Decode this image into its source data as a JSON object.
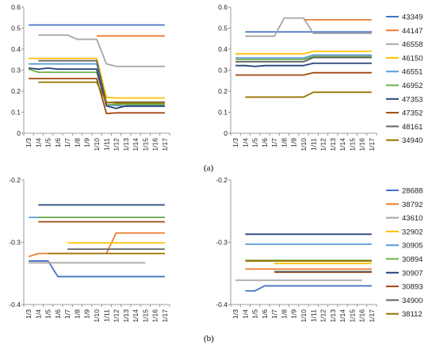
{
  "panel_labels": [
    "(a)",
    "(b)"
  ],
  "chart_data": [
    {
      "type": "line",
      "panel": "a",
      "side": "left",
      "categories": [
        "1/3",
        "1/4",
        "1/5",
        "1/6",
        "1/7",
        "1/8",
        "1/9",
        "1/10",
        "1/11",
        "1/12",
        "1/13",
        "1/14",
        "1/15",
        "1/16",
        "1/17"
      ],
      "ylim": [
        0,
        0.6
      ],
      "yticks": [
        0,
        0.1,
        0.2,
        0.3,
        0.4,
        0.5,
        0.6
      ],
      "grid": false,
      "series": [
        {
          "name": "43349",
          "color": "#4472C4",
          "values": [
            0.515,
            0.515,
            0.515,
            0.515,
            0.515,
            0.515,
            0.515,
            0.515,
            0.515,
            0.515,
            0.515,
            0.515,
            0.515,
            0.515,
            0.515
          ]
        },
        {
          "name": "44147",
          "color": "#ED7D31",
          "values": [
            null,
            null,
            null,
            null,
            null,
            null,
            null,
            0.463,
            0.463,
            0.463,
            0.463,
            0.463,
            0.463,
            0.463,
            0.463
          ]
        },
        {
          "name": "46558",
          "color": "#A5A5A5",
          "values": [
            null,
            0.467,
            0.467,
            0.467,
            0.467,
            0.447,
            0.447,
            0.447,
            0.33,
            0.318,
            0.318,
            0.318,
            0.318,
            0.318,
            0.318
          ]
        },
        {
          "name": "46150",
          "color": "#FFC000",
          "values": [
            0.356,
            0.356,
            0.356,
            0.356,
            0.356,
            0.356,
            0.356,
            0.356,
            0.17,
            0.168,
            0.168,
            0.168,
            0.168,
            0.168,
            0.168
          ]
        },
        {
          "name": "46551",
          "color": "#5B9BD5",
          "values": [
            0.33,
            0.33,
            0.33,
            0.33,
            0.33,
            0.33,
            0.33,
            0.33,
            0.135,
            0.132,
            0.128,
            0.128,
            0.128,
            0.128,
            0.128
          ]
        },
        {
          "name": "46952",
          "color": "#70AD47",
          "values": [
            0.305,
            0.29,
            0.29,
            0.29,
            0.29,
            0.29,
            0.29,
            0.29,
            0.135,
            0.138,
            0.138,
            0.138,
            0.138,
            0.138,
            0.138
          ]
        },
        {
          "name": "47353",
          "color": "#264478",
          "values": [
            0.31,
            0.305,
            0.31,
            0.305,
            0.305,
            0.305,
            0.305,
            0.305,
            0.13,
            0.118,
            0.13,
            0.13,
            0.13,
            0.13,
            0.13
          ]
        },
        {
          "name": "47352",
          "color": "#9E480E",
          "values": [
            0.26,
            0.26,
            0.26,
            0.26,
            0.26,
            0.26,
            0.26,
            0.26,
            0.094,
            0.097,
            0.097,
            0.097,
            0.097,
            0.097,
            0.097
          ]
        },
        {
          "name": "48161",
          "color": "#636363",
          "values": [
            null,
            0.345,
            0.345,
            0.345,
            0.345,
            0.345,
            0.345,
            0.345,
            0.145,
            0.148,
            0.148,
            0.148,
            0.148,
            0.148,
            0.148
          ]
        },
        {
          "name": "34940",
          "color": "#997300",
          "values": [
            null,
            0.243,
            0.243,
            0.243,
            0.243,
            0.243,
            0.243,
            0.243,
            0.147,
            0.145,
            0.145,
            0.145,
            0.145,
            0.145,
            0.145
          ]
        }
      ]
    },
    {
      "type": "line",
      "panel": "a",
      "side": "right",
      "categories": [
        "1/3",
        "1/4",
        "1/5",
        "1/6",
        "1/7",
        "1/8",
        "1/9",
        "1/10",
        "1/11",
        "1/12",
        "1/13",
        "1/14",
        "1/15",
        "1/16",
        "1/17"
      ],
      "ylim": [
        0,
        0.6
      ],
      "yticks": [
        0,
        0.1,
        0.2,
        0.3,
        0.4,
        0.5,
        0.6
      ],
      "grid": false,
      "series": [
        {
          "name": "43349",
          "color": "#4472C4",
          "values": [
            null,
            0.482,
            0.482,
            0.482,
            0.482,
            0.482,
            0.482,
            0.482,
            0.482,
            0.482,
            0.482,
            0.482,
            0.482,
            0.482,
            0.482
          ]
        },
        {
          "name": "44147",
          "color": "#ED7D31",
          "values": [
            null,
            null,
            null,
            null,
            null,
            null,
            null,
            0.54,
            0.54,
            0.54,
            0.54,
            0.54,
            0.54,
            0.54,
            0.54
          ]
        },
        {
          "name": "46558",
          "color": "#A5A5A5",
          "values": [
            null,
            0.462,
            0.462,
            0.462,
            0.462,
            0.548,
            0.548,
            0.548,
            0.475,
            0.475,
            0.475,
            0.475,
            0.475,
            0.475,
            0.475
          ]
        },
        {
          "name": "46150",
          "color": "#FFC000",
          "values": [
            0.378,
            0.378,
            0.378,
            0.378,
            0.378,
            0.378,
            0.378,
            0.378,
            0.39,
            0.39,
            0.39,
            0.39,
            0.39,
            0.39,
            0.39
          ]
        },
        {
          "name": "46551",
          "color": "#5B9BD5",
          "values": [
            0.358,
            0.358,
            0.358,
            0.358,
            0.358,
            0.358,
            0.358,
            0.358,
            0.372,
            0.372,
            0.372,
            0.372,
            0.372,
            0.372,
            0.372
          ]
        },
        {
          "name": "46952",
          "color": "#70AD47",
          "values": [
            0.35,
            0.35,
            0.35,
            0.35,
            0.35,
            0.35,
            0.35,
            0.35,
            0.365,
            0.365,
            0.365,
            0.365,
            0.365,
            0.365,
            0.365
          ]
        },
        {
          "name": "47353",
          "color": "#264478",
          "values": [
            0.322,
            0.322,
            0.318,
            0.322,
            0.322,
            0.322,
            0.322,
            0.322,
            0.333,
            0.333,
            0.333,
            0.333,
            0.333,
            0.333,
            0.333
          ]
        },
        {
          "name": "47352",
          "color": "#9E480E",
          "values": [
            0.277,
            0.277,
            0.277,
            0.277,
            0.277,
            0.277,
            0.277,
            0.277,
            0.288,
            0.288,
            0.288,
            0.288,
            0.288,
            0.288,
            0.288
          ]
        },
        {
          "name": "48161",
          "color": "#636363",
          "values": [
            0.34,
            0.34,
            0.34,
            0.34,
            0.34,
            0.34,
            0.34,
            0.34,
            0.36,
            0.36,
            0.36,
            0.36,
            0.36,
            0.36,
            0.36
          ]
        },
        {
          "name": "34940",
          "color": "#997300",
          "values": [
            null,
            0.172,
            0.172,
            0.172,
            0.172,
            0.172,
            0.172,
            0.172,
            0.195,
            0.195,
            0.195,
            0.195,
            0.195,
            0.195,
            0.195
          ]
        }
      ]
    },
    {
      "type": "line",
      "panel": "b",
      "side": "left",
      "categories": [
        "1/3",
        "1/4",
        "1/5",
        "1/6",
        "1/7",
        "1/8",
        "1/9",
        "1/10",
        "1/11",
        "1/12",
        "1/13",
        "1/14",
        "1/15",
        "1/16",
        "1/17"
      ],
      "ylim": [
        -0.4,
        -0.2
      ],
      "yticks": [
        -0.4,
        -0.3,
        -0.2
      ],
      "grid": false,
      "series": [
        {
          "name": "28688",
          "color": "#4472C4",
          "values": [
            -0.33,
            -0.33,
            -0.33,
            -0.355,
            -0.355,
            -0.355,
            -0.355,
            -0.355,
            -0.355,
            -0.355,
            -0.355,
            -0.355,
            -0.355,
            -0.355,
            -0.355
          ]
        },
        {
          "name": "38792",
          "color": "#ED7D31",
          "values": [
            -0.323,
            -0.318,
            -0.318,
            -0.318,
            -0.318,
            -0.318,
            -0.318,
            -0.318,
            -0.318,
            -0.285,
            -0.285,
            -0.285,
            -0.285,
            -0.285,
            -0.285
          ]
        },
        {
          "name": "43610",
          "color": "#A5A5A5",
          "values": [
            -0.333,
            -0.333,
            -0.333,
            -0.333,
            -0.333,
            -0.333,
            -0.333,
            -0.333,
            -0.333,
            -0.333,
            -0.333,
            -0.333,
            -0.333,
            null,
            null
          ]
        },
        {
          "name": "32902",
          "color": "#FFC000",
          "values": [
            null,
            null,
            null,
            null,
            -0.301,
            -0.301,
            -0.301,
            -0.301,
            -0.301,
            -0.301,
            -0.301,
            -0.301,
            -0.301,
            -0.301,
            -0.301
          ]
        },
        {
          "name": "30905",
          "color": "#5B9BD5",
          "values": [
            -0.26,
            -0.26,
            -0.26,
            -0.26,
            -0.26,
            -0.26,
            -0.26,
            -0.26,
            -0.26,
            -0.26,
            -0.26,
            -0.26,
            -0.26,
            -0.26,
            -0.26
          ]
        },
        {
          "name": "30894",
          "color": "#70AD47",
          "values": [
            null,
            -0.26,
            -0.26,
            -0.26,
            -0.26,
            -0.26,
            -0.26,
            -0.26,
            -0.26,
            -0.26,
            -0.26,
            -0.26,
            -0.26,
            -0.26,
            -0.26
          ]
        },
        {
          "name": "30907",
          "color": "#264478",
          "values": [
            null,
            -0.24,
            -0.24,
            -0.24,
            -0.24,
            -0.24,
            -0.24,
            -0.24,
            -0.24,
            -0.24,
            -0.24,
            -0.24,
            -0.24,
            -0.24,
            -0.24
          ]
        },
        {
          "name": "30893",
          "color": "#9E480E",
          "values": [
            null,
            -0.267,
            -0.267,
            -0.267,
            -0.267,
            -0.267,
            -0.267,
            -0.267,
            -0.267,
            -0.267,
            -0.267,
            -0.267,
            -0.267,
            -0.267,
            -0.267
          ]
        },
        {
          "name": "34900",
          "color": "#636363",
          "values": [
            null,
            null,
            null,
            null,
            -0.311,
            -0.311,
            -0.311,
            -0.311,
            -0.311,
            -0.311,
            -0.311,
            -0.311,
            -0.311,
            -0.311,
            -0.311
          ]
        },
        {
          "name": "38112",
          "color": "#997300",
          "values": [
            null,
            null,
            -0.318,
            -0.318,
            -0.318,
            -0.318,
            -0.318,
            -0.318,
            -0.318,
            -0.318,
            -0.318,
            -0.318,
            -0.318,
            -0.318,
            -0.318
          ]
        }
      ]
    },
    {
      "type": "line",
      "panel": "b",
      "side": "right",
      "categories": [
        "1/3",
        "1/4",
        "1/5",
        "1/6",
        "1/7",
        "1/8",
        "1/9",
        "1/10",
        "1/11",
        "1/12",
        "1/13",
        "1/14",
        "1/15",
        "1/16",
        "1/17"
      ],
      "ylim": [
        -0.4,
        -0.2
      ],
      "yticks": [
        -0.4,
        -0.3,
        -0.2
      ],
      "grid": false,
      "series": [
        {
          "name": "28688",
          "color": "#4472C4",
          "values": [
            null,
            -0.378,
            -0.378,
            -0.37,
            -0.37,
            -0.37,
            -0.37,
            -0.37,
            -0.37,
            -0.37,
            -0.37,
            -0.37,
            -0.37,
            -0.37,
            -0.37
          ]
        },
        {
          "name": "38792",
          "color": "#ED7D31",
          "values": [
            null,
            -0.343,
            -0.343,
            -0.343,
            -0.343,
            -0.343,
            -0.343,
            -0.343,
            -0.343,
            -0.343,
            -0.343,
            -0.343,
            -0.343,
            -0.343,
            -0.343
          ]
        },
        {
          "name": "43610",
          "color": "#A5A5A5",
          "values": [
            -0.361,
            -0.361,
            -0.361,
            -0.361,
            -0.361,
            -0.361,
            -0.361,
            -0.361,
            -0.361,
            -0.361,
            -0.361,
            -0.361,
            -0.361,
            -0.361,
            null
          ]
        },
        {
          "name": "32902",
          "color": "#FFC000",
          "values": [
            null,
            null,
            null,
            null,
            -0.334,
            -0.334,
            -0.334,
            -0.334,
            -0.334,
            -0.334,
            -0.334,
            -0.334,
            -0.334,
            -0.334,
            -0.334
          ]
        },
        {
          "name": "30905",
          "color": "#5B9BD5",
          "values": [
            null,
            -0.303,
            -0.303,
            -0.303,
            -0.303,
            -0.303,
            -0.303,
            -0.303,
            -0.303,
            -0.303,
            -0.303,
            -0.303,
            -0.303,
            -0.303,
            -0.303
          ]
        },
        {
          "name": "30894",
          "color": "#70AD47",
          "values": [
            null,
            -0.329,
            -0.329,
            -0.329,
            -0.329,
            -0.329,
            -0.329,
            -0.329,
            -0.329,
            -0.329,
            -0.329,
            -0.329,
            -0.329,
            -0.329,
            -0.329
          ]
        },
        {
          "name": "30907",
          "color": "#264478",
          "values": [
            null,
            -0.287,
            -0.287,
            -0.287,
            -0.287,
            -0.287,
            -0.287,
            -0.287,
            -0.287,
            -0.287,
            -0.287,
            -0.287,
            -0.287,
            -0.287,
            -0.287
          ]
        },
        {
          "name": "30893",
          "color": "#9E480E",
          "values": [
            null,
            null,
            null,
            null,
            -0.348,
            -0.348,
            -0.348,
            -0.348,
            -0.348,
            -0.348,
            -0.348,
            -0.348,
            -0.348,
            -0.348,
            -0.348
          ]
        },
        {
          "name": "34900",
          "color": "#636363",
          "values": [
            null,
            null,
            null,
            null,
            -0.347,
            -0.347,
            -0.347,
            -0.347,
            -0.347,
            -0.347,
            -0.347,
            -0.347,
            -0.347,
            -0.347,
            -0.347
          ]
        },
        {
          "name": "38112",
          "color": "#997300",
          "values": [
            null,
            -0.33,
            -0.33,
            -0.33,
            -0.33,
            -0.33,
            -0.33,
            -0.33,
            -0.33,
            -0.33,
            -0.33,
            -0.33,
            -0.33,
            -0.33,
            -0.33
          ]
        }
      ]
    }
  ]
}
